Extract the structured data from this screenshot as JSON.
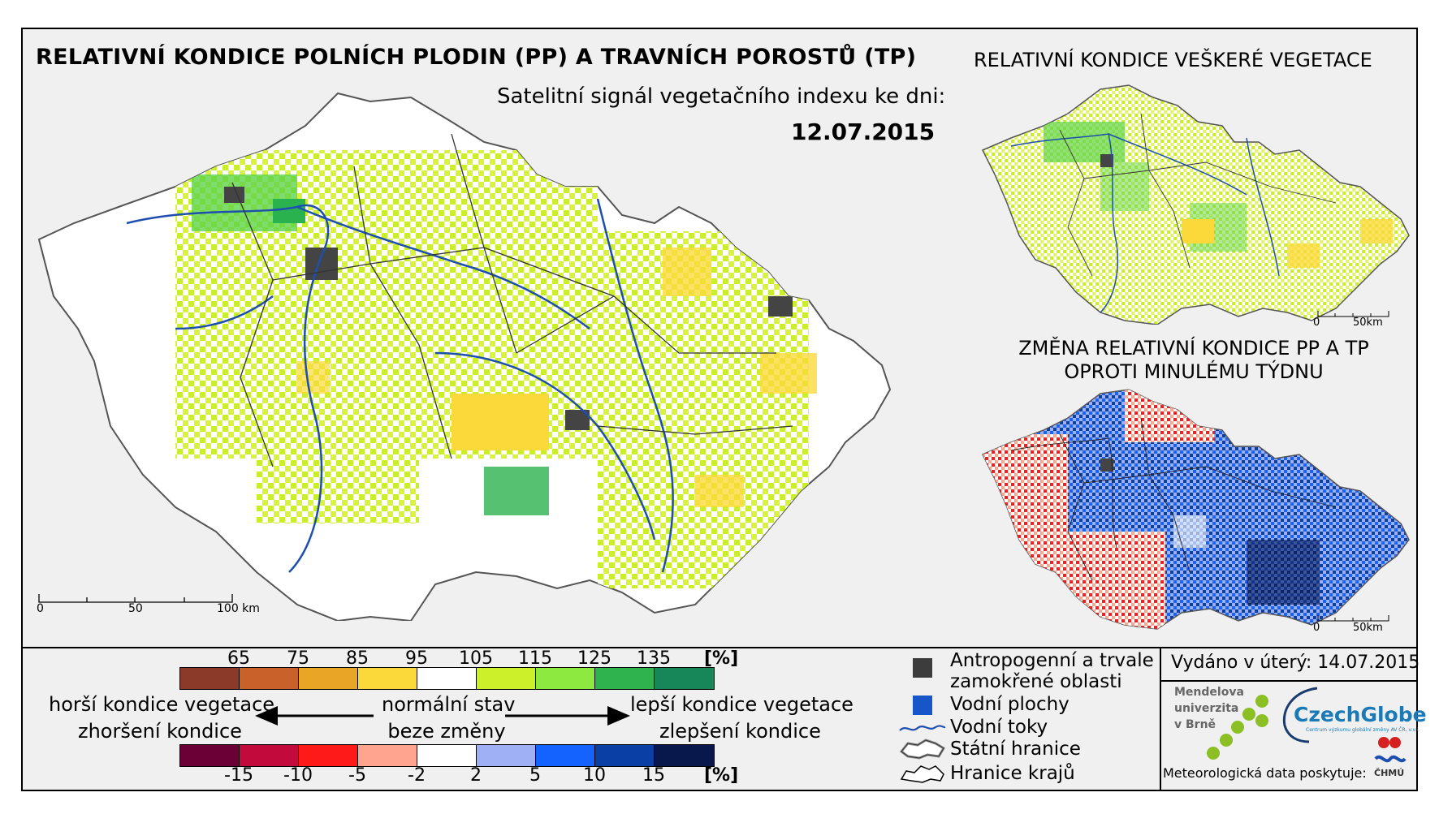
{
  "title_main": "RELATIVNÍ KONDICE POLNÍCH PLODIN (PP) A TRAVNÍCH POROSTŮ (TP)",
  "subtitle": "Satelitní signál vegetačního indexu ke dni:",
  "date": "12.07.2015",
  "title_right": "RELATIVNÍ KONDICE VEŠKERÉ VEGETACE",
  "title_change_line1": "ZMĚNA RELATIVNÍ KONDICE PP A TP",
  "title_change_line2": "OPROTI MINULÉMU TÝDNU",
  "scale_main": {
    "s0": "0",
    "s1": "50",
    "s2": "100 km"
  },
  "scale_small_top": {
    "s0": "0",
    "s1": "50km"
  },
  "scale_small_bottom": {
    "s0": "0",
    "s1": "50km"
  },
  "legend_top": {
    "ticks": [
      "65",
      "75",
      "85",
      "95",
      "105",
      "115",
      "125",
      "135"
    ],
    "unit": "[%]",
    "colors": [
      "#8b3a2a",
      "#c8622a",
      "#e9a526",
      "#fbd93b",
      "#ffffff",
      "#ccf02a",
      "#8de840",
      "#2fb34e",
      "#17875a"
    ]
  },
  "legend_bottom": {
    "ticks": [
      "-15",
      "-10",
      "-5",
      "-2",
      "2",
      "5",
      "10",
      "15"
    ],
    "unit": "[%]",
    "colors": [
      "#6a0036",
      "#c20a3c",
      "#ff1a1a",
      "#ffa58f",
      "#ffffff",
      "#9fb0f4",
      "#1463ff",
      "#0a3fa6",
      "#08184d"
    ]
  },
  "legend_text": {
    "worse_1": "horší kondice vegetace",
    "worse_2": "zhoršení kondice",
    "normal_1": "normální stav",
    "normal_2": "beze změny",
    "better_1": "lepší kondice vegetace",
    "better_2": "zlepšení kondice"
  },
  "symbols": {
    "anthro_1": "Antropogenní a trvale",
    "anthro_2": "zamokřené oblasti",
    "water_areas": "Vodní plochy",
    "rivers": "Vodní toky",
    "state_border": "Státní hranice",
    "region_border": "Hranice krajů",
    "colors": {
      "anthro": "#3c3c3c",
      "water": "#1656c8",
      "river": "#1e4fb0"
    }
  },
  "issued": "Vydáno v úterý: 14.07.2015",
  "mendel": {
    "l1": "Mendelova",
    "l2": "univerzita",
    "l3": "v Brně"
  },
  "czechglobe": "CzechGlobe",
  "czechglobe_sub": "Centrum výzkumu globální změny AV ČR, v.v.i.",
  "credit": "Meteorologická data poskytuje:",
  "chmu": "ČHMÚ"
}
